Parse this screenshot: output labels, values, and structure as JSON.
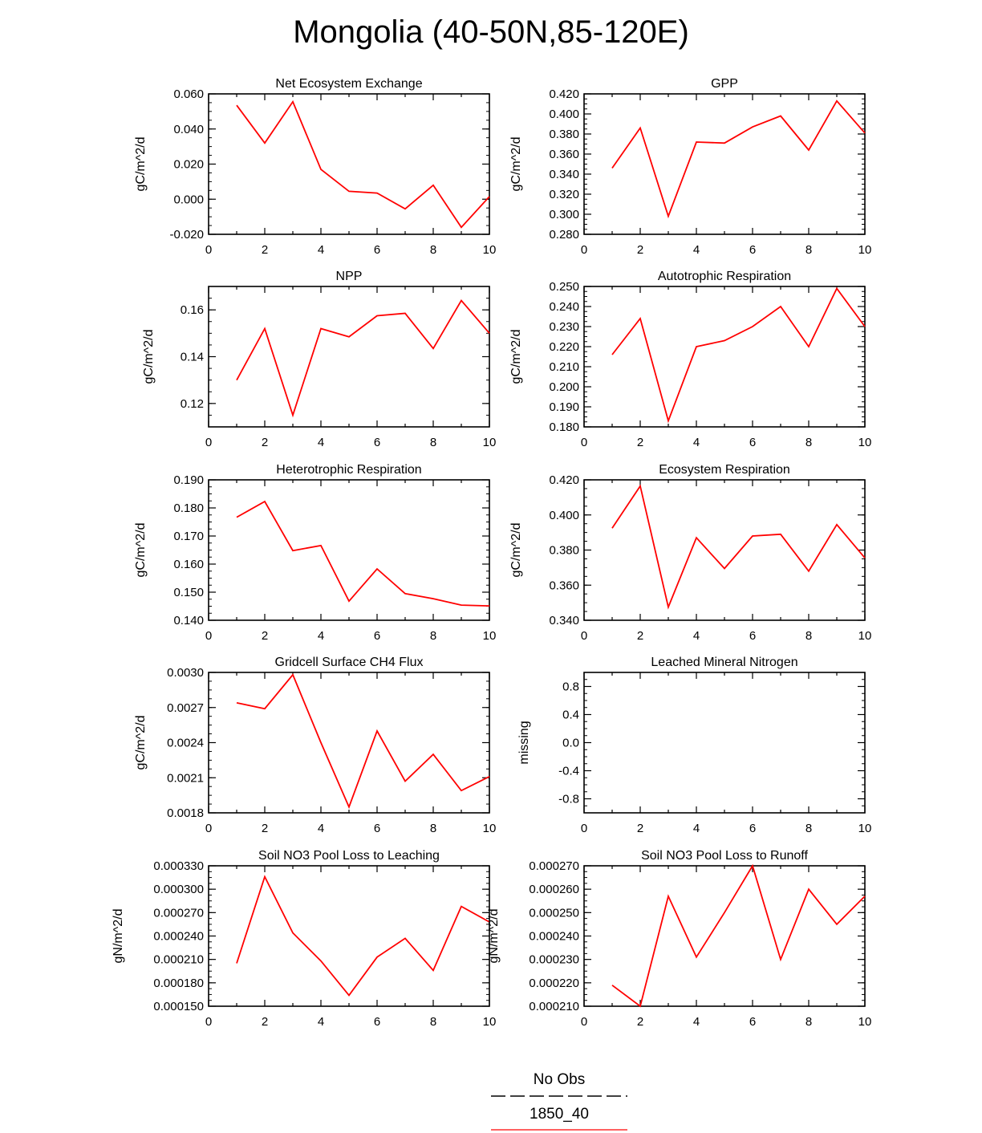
{
  "title": "Mongolia (40-50N,85-120E)",
  "legend": {
    "entries": [
      {
        "label": "No Obs",
        "style": "dashed",
        "color": "#000000"
      },
      {
        "label": "1850_40",
        "style": "solid",
        "color": "#ff0000"
      }
    ]
  },
  "chart_data": [
    {
      "type": "line",
      "title": "Net Ecosystem Exchange",
      "ylabel": "gC/m^2/d",
      "xlim": [
        0,
        10
      ],
      "ylim": [
        -0.02,
        0.06
      ],
      "xticks": [
        "0",
        "2",
        "4",
        "6",
        "8",
        "10"
      ],
      "yticks": [
        "-0.020",
        "0.000",
        "0.020",
        "0.040",
        "0.060"
      ],
      "x": [
        1,
        2,
        3,
        4,
        5,
        6,
        7,
        8,
        9,
        10
      ],
      "series": [
        {
          "color": "#ff0000",
          "values": [
            0.0535,
            0.032,
            0.0555,
            0.017,
            0.0045,
            0.0035,
            -0.0055,
            0.008,
            -0.016,
            0.0015
          ]
        }
      ]
    },
    {
      "type": "line",
      "title": "GPP",
      "ylabel": "gC/m^2/d",
      "xlim": [
        0,
        10
      ],
      "ylim": [
        0.28,
        0.42
      ],
      "xticks": [
        "0",
        "2",
        "4",
        "6",
        "8",
        "10"
      ],
      "yticks": [
        "0.280",
        "0.300",
        "0.320",
        "0.340",
        "0.360",
        "0.380",
        "0.400",
        "0.420"
      ],
      "x": [
        1,
        2,
        3,
        4,
        5,
        6,
        7,
        8,
        9,
        10
      ],
      "series": [
        {
          "color": "#ff0000",
          "values": [
            0.346,
            0.386,
            0.298,
            0.372,
            0.371,
            0.387,
            0.398,
            0.364,
            0.413,
            0.381
          ]
        }
      ]
    },
    {
      "type": "line",
      "title": "NPP",
      "ylabel": "gC/m^2/d",
      "xlim": [
        0,
        10
      ],
      "ylim": [
        0.11,
        0.17
      ],
      "xticks": [
        "0",
        "2",
        "4",
        "6",
        "8",
        "10"
      ],
      "yticks": [
        "0.12",
        "0.14",
        "0.16"
      ],
      "x": [
        1,
        2,
        3,
        4,
        5,
        6,
        7,
        8,
        9,
        10
      ],
      "series": [
        {
          "color": "#ff0000",
          "values": [
            0.13,
            0.152,
            0.115,
            0.152,
            0.1485,
            0.1575,
            0.1585,
            0.1435,
            0.164,
            0.15
          ]
        }
      ]
    },
    {
      "type": "line",
      "title": "Autotrophic Respiration",
      "ylabel": "gC/m^2/d",
      "xlim": [
        0,
        10
      ],
      "ylim": [
        0.18,
        0.25
      ],
      "xticks": [
        "0",
        "2",
        "4",
        "6",
        "8",
        "10"
      ],
      "yticks": [
        "0.180",
        "0.190",
        "0.200",
        "0.210",
        "0.220",
        "0.230",
        "0.240",
        "0.250"
      ],
      "x": [
        1,
        2,
        3,
        4,
        5,
        6,
        7,
        8,
        9,
        10
      ],
      "series": [
        {
          "color": "#ff0000",
          "values": [
            0.216,
            0.234,
            0.183,
            0.22,
            0.223,
            0.23,
            0.24,
            0.22,
            0.249,
            0.23
          ]
        }
      ]
    },
    {
      "type": "line",
      "title": "Heterotrophic Respiration",
      "ylabel": "gC/m^2/d",
      "xlim": [
        0,
        10
      ],
      "ylim": [
        0.14,
        0.19
      ],
      "xticks": [
        "0",
        "2",
        "4",
        "6",
        "8",
        "10"
      ],
      "yticks": [
        "0.140",
        "0.150",
        "0.160",
        "0.170",
        "0.180",
        "0.190"
      ],
      "x": [
        1,
        2,
        3,
        4,
        5,
        6,
        7,
        8,
        9,
        10
      ],
      "series": [
        {
          "color": "#ff0000",
          "values": [
            0.1767,
            0.1823,
            0.1648,
            0.1666,
            0.1468,
            0.1583,
            0.1495,
            0.1477,
            0.1454,
            0.1451
          ]
        }
      ]
    },
    {
      "type": "line",
      "title": "Ecosystem Respiration",
      "ylabel": "gC/m^2/d",
      "xlim": [
        0,
        10
      ],
      "ylim": [
        0.34,
        0.42
      ],
      "xticks": [
        "0",
        "2",
        "4",
        "6",
        "8",
        "10"
      ],
      "yticks": [
        "0.340",
        "0.360",
        "0.380",
        "0.400",
        "0.420"
      ],
      "x": [
        1,
        2,
        3,
        4,
        5,
        6,
        7,
        8,
        9,
        10
      ],
      "series": [
        {
          "color": "#ff0000",
          "values": [
            0.3925,
            0.4165,
            0.3475,
            0.387,
            0.3695,
            0.388,
            0.389,
            0.368,
            0.3945,
            0.3755
          ]
        }
      ]
    },
    {
      "type": "line",
      "title": "Gridcell Surface CH4 Flux",
      "ylabel": "gC/m^2/d",
      "xlim": [
        0,
        10
      ],
      "ylim": [
        0.0018,
        0.003
      ],
      "xticks": [
        "0",
        "2",
        "4",
        "6",
        "8",
        "10"
      ],
      "yticks": [
        "0.0018",
        "0.0021",
        "0.0024",
        "0.0027",
        "0.0030"
      ],
      "x": [
        1,
        2,
        3,
        4,
        5,
        6,
        7,
        8,
        9,
        10
      ],
      "series": [
        {
          "color": "#ff0000",
          "values": [
            0.00274,
            0.00269,
            0.00298,
            0.0024,
            0.00185,
            0.0025,
            0.00207,
            0.0023,
            0.00199,
            0.00211
          ]
        }
      ]
    },
    {
      "type": "line",
      "title": "Leached Mineral Nitrogen",
      "ylabel": "missing",
      "xlim": [
        0,
        10
      ],
      "ylim": [
        -1,
        1
      ],
      "xticks": [
        "0",
        "2",
        "4",
        "6",
        "8",
        "10"
      ],
      "yticks": [
        "-0.8",
        "-0.4",
        "0.0",
        "0.4",
        "0.8"
      ],
      "x": [],
      "series": []
    },
    {
      "type": "line",
      "title": "Soil NO3 Pool Loss to Leaching",
      "ylabel": "gN/m^2/d",
      "xlim": [
        0,
        10
      ],
      "ylim": [
        0.00015,
        0.00033
      ],
      "xticks": [
        "0",
        "2",
        "4",
        "6",
        "8",
        "10"
      ],
      "yticks": [
        "0.000150",
        "0.000180",
        "0.000210",
        "0.000240",
        "0.000270",
        "0.000300",
        "0.000330"
      ],
      "x": [
        1,
        2,
        3,
        4,
        5,
        6,
        7,
        8,
        9,
        10
      ],
      "series": [
        {
          "color": "#ff0000",
          "values": [
            0.000205,
            0.000316,
            0.000244,
            0.000208,
            0.000164,
            0.000213,
            0.000237,
            0.000196,
            0.000278,
            0.000258
          ]
        }
      ]
    },
    {
      "type": "line",
      "title": "Soil NO3 Pool Loss to Runoff",
      "ylabel": "gN/m^2/d",
      "xlim": [
        0,
        10
      ],
      "ylim": [
        0.00021,
        0.00027
      ],
      "xticks": [
        "0",
        "2",
        "4",
        "6",
        "8",
        "10"
      ],
      "yticks": [
        "0.000210",
        "0.000220",
        "0.000230",
        "0.000240",
        "0.000250",
        "0.000260",
        "0.000270"
      ],
      "x": [
        1,
        2,
        3,
        4,
        5,
        6,
        7,
        8,
        9,
        10
      ],
      "series": [
        {
          "color": "#ff0000",
          "values": [
            0.000219,
            0.00021,
            0.000257,
            0.000231,
            0.00025,
            0.00027,
            0.00023,
            0.00026,
            0.000245,
            0.000257
          ]
        }
      ]
    }
  ]
}
